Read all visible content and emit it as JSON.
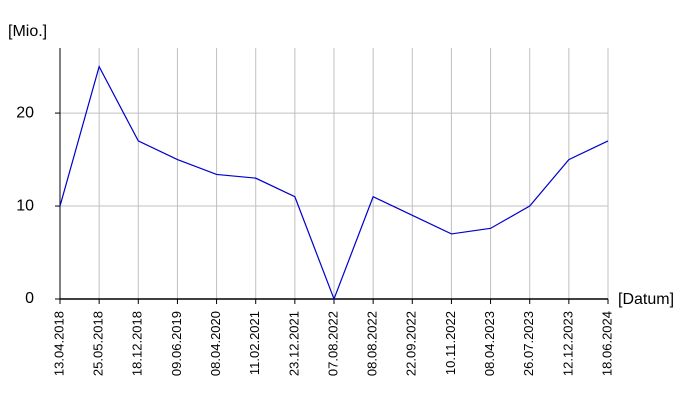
{
  "chart_data": {
    "type": "line",
    "y_label": "[Mio.]",
    "x_label": "[Datum]",
    "categories": [
      "13.04.2018",
      "25.05.2018",
      "18.12.2018",
      "09.06.2019",
      "08.04.2020",
      "11.02.2021",
      "23.12.2021",
      "07.08.2022",
      "08.08.2022",
      "22.09.2022",
      "10.11.2022",
      "08.04.2023",
      "26.07.2023",
      "12.12.2023",
      "18.06.2024"
    ],
    "series": [
      {
        "name": "Mio.",
        "color": "#0000cc",
        "values": [
          10,
          25,
          17,
          15,
          13.4,
          13,
          11,
          0,
          11,
          9,
          7,
          7.6,
          10,
          15,
          17
        ]
      }
    ],
    "ylim": [
      0,
      27
    ],
    "yticks": [
      0,
      10,
      20
    ],
    "grid": true
  }
}
